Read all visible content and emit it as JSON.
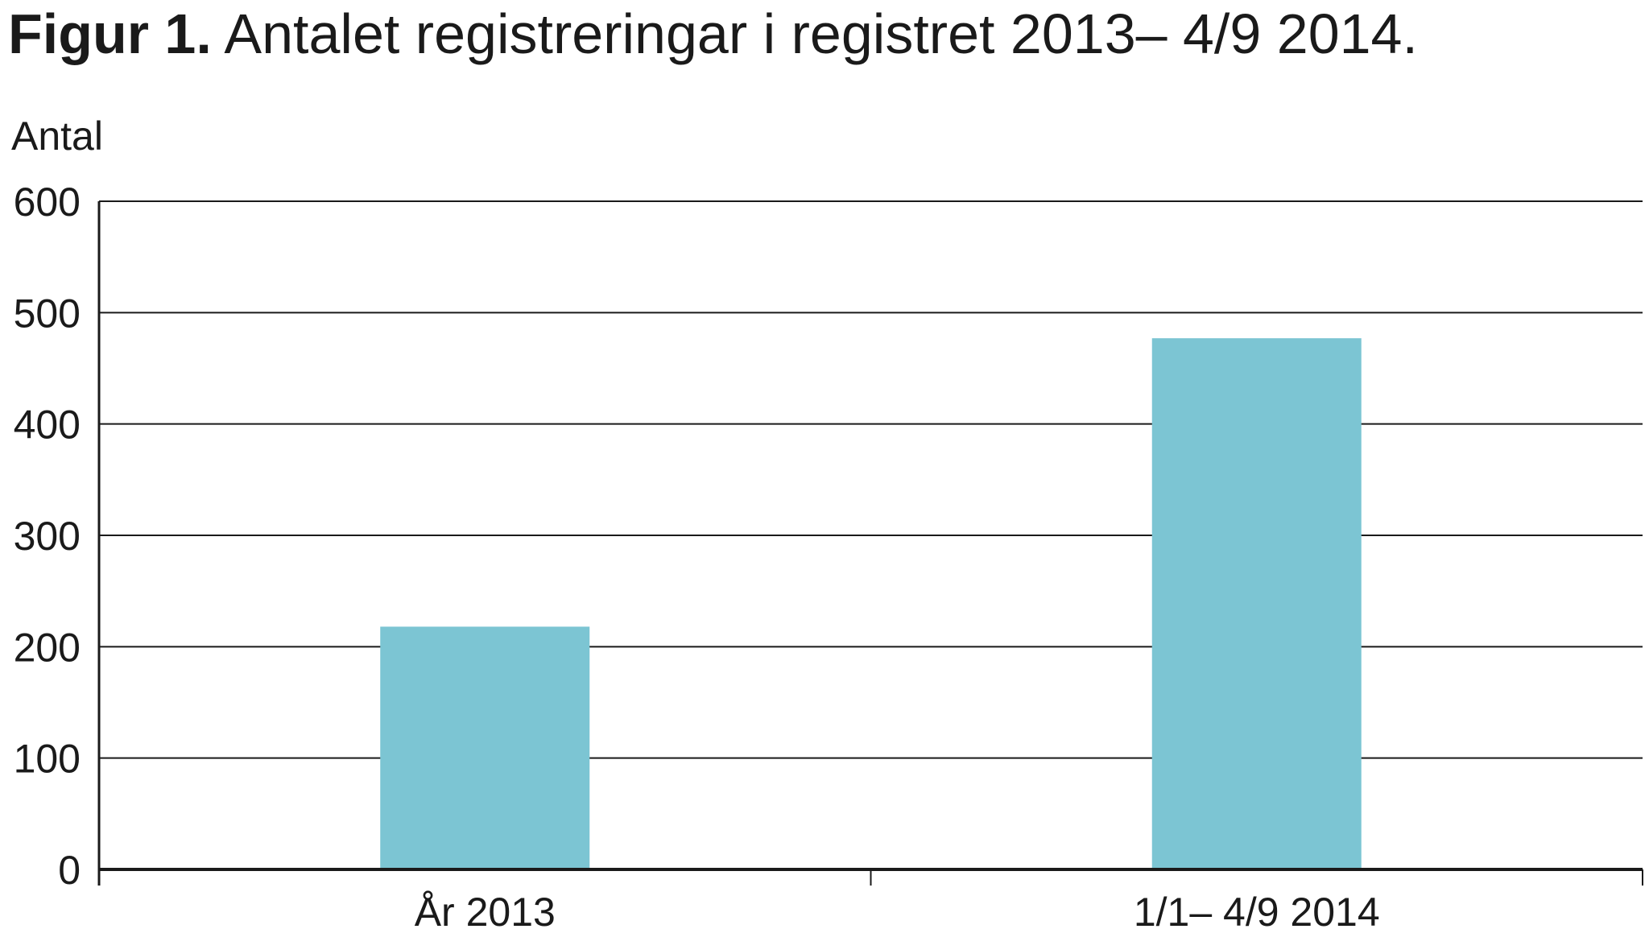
{
  "chart_data": {
    "type": "bar",
    "title_prefix": "Figur 1.",
    "title": "Antalet registreringar i registret 2013– 4/9 2014.",
    "xlabel": "",
    "ylabel": "Antal",
    "categories": [
      "År 2013",
      "1/1– 4/9 2014"
    ],
    "values": [
      218,
      477
    ],
    "ylim": [
      0,
      600
    ],
    "yticks": [
      0,
      100,
      200,
      300,
      400,
      500,
      600
    ],
    "grid": true,
    "legend": "none",
    "bar_color": "#7cc5d3",
    "axis_color": "#1a1a1a"
  }
}
